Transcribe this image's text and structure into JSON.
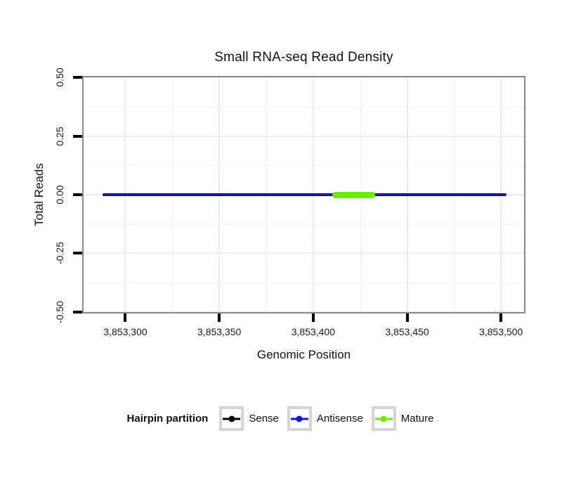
{
  "chart_data": {
    "type": "line",
    "title": "Small RNA-seq Read Density",
    "xlabel": "Genomic Position",
    "ylabel": "Total Reads",
    "xlim": [
      3853277,
      3853513
    ],
    "ylim": [
      -0.506,
      0.506
    ],
    "grid": true,
    "x_ticks": {
      "values": [
        3853300,
        3853350,
        3853400,
        3853450,
        3853500
      ],
      "labels": [
        "3,853,300",
        "3,853,350",
        "3,853,400",
        "3,853,450",
        "3,853,500"
      ]
    },
    "x_minor": [
      3853325,
      3853375,
      3853425,
      3853475
    ],
    "y_ticks": {
      "values": [
        0.5,
        0.25,
        0.0,
        -0.25,
        -0.5
      ],
      "labels": [
        "0.50",
        "0.25",
        "0.00",
        "-0.25",
        "-0.50"
      ]
    },
    "y_minor": [
      0.375,
      0.125,
      -0.125,
      -0.375
    ],
    "series": [
      {
        "name": "Sense",
        "x": [
          3853288,
          3853503
        ],
        "y": [
          0,
          0
        ],
        "color": "#0d0d0d",
        "linewidth": 4.5,
        "cap": 2,
        "z": 1
      },
      {
        "name": "Antisense",
        "x": [
          3853288,
          3853503
        ],
        "y": [
          0,
          0
        ],
        "color": "#2222b4",
        "linewidth": 2,
        "cap": 1,
        "z": 2
      },
      {
        "name": "Mature",
        "x": [
          3853410,
          3853433
        ],
        "y": [
          0,
          0
        ],
        "color": "#70e800",
        "linewidth": 9,
        "cap": 4.5,
        "z": 3
      }
    ],
    "legend": {
      "title": "Hairpin partition",
      "position": "bottom",
      "entries": [
        {
          "label": "Sense",
          "color": "#000000"
        },
        {
          "label": "Antisense",
          "color": "#1414e6"
        },
        {
          "label": "Mature",
          "color": "#70e800"
        }
      ]
    }
  },
  "style_colors": {
    "panel_border": "#8a8a8a",
    "grid_major": "#ececec",
    "grid_minor": "#f4f4f4",
    "tick": "#000000",
    "legend_key_border": "#d4d4d4"
  }
}
